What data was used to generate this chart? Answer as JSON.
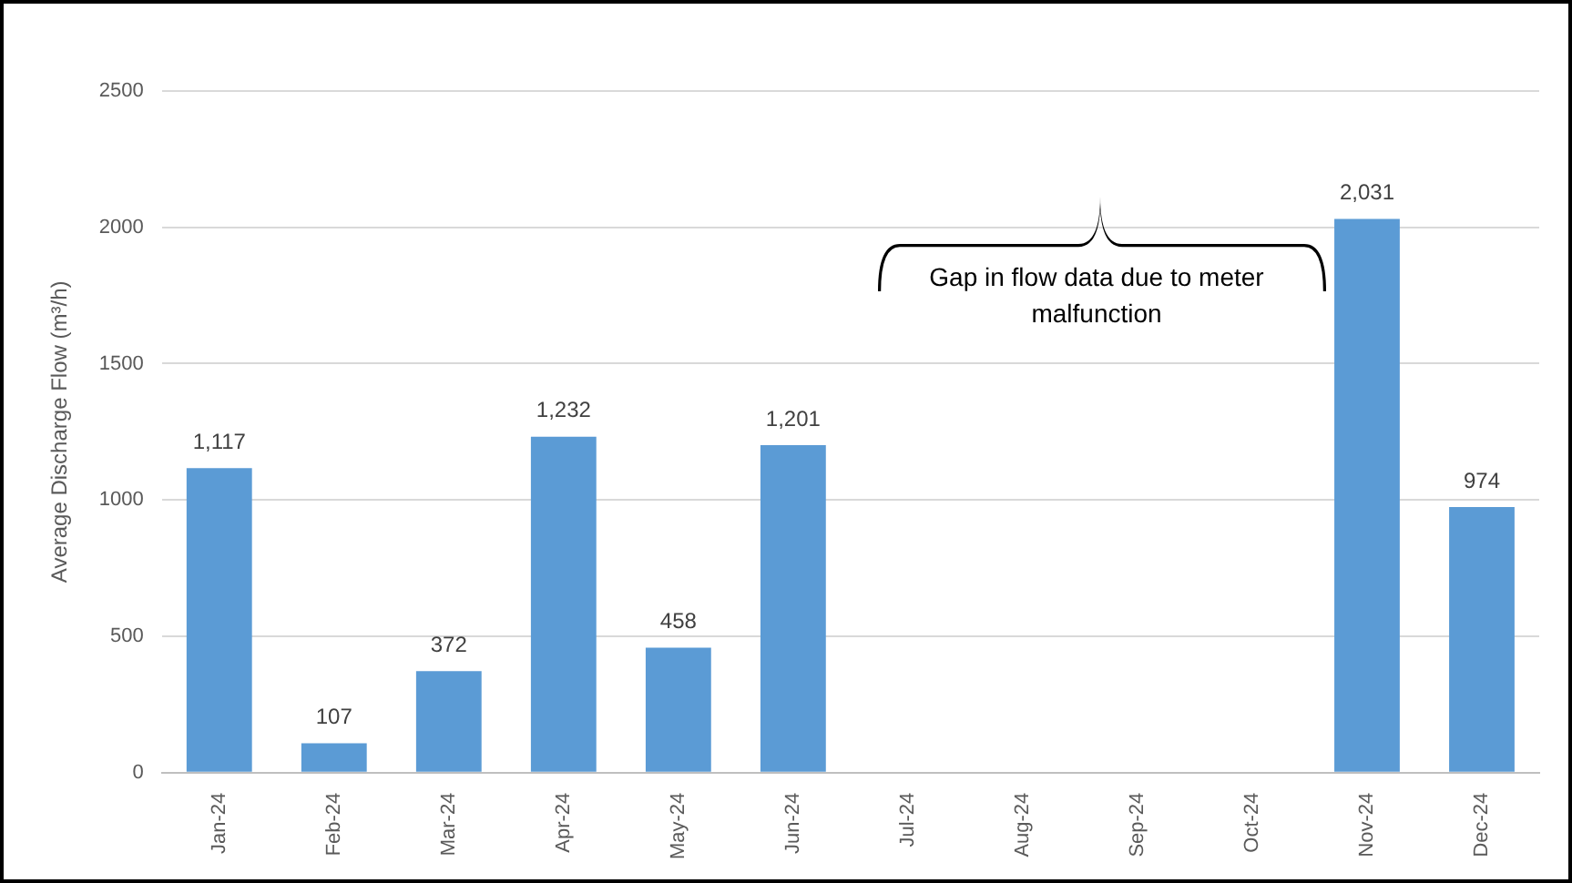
{
  "chart_data": {
    "type": "bar",
    "categories": [
      "Jan-24",
      "Feb-24",
      "Mar-24",
      "Apr-24",
      "May-24",
      "Jun-24",
      "Jul-24",
      "Aug-24",
      "Sep-24",
      "Oct-24",
      "Nov-24",
      "Dec-24"
    ],
    "values": [
      1117,
      107,
      372,
      1232,
      458,
      1201,
      null,
      null,
      null,
      null,
      2031,
      974
    ],
    "value_labels": [
      "1,117",
      "107",
      "372",
      "1,232",
      "458",
      "1,201",
      null,
      null,
      null,
      null,
      "2,031",
      "974"
    ],
    "color": "#5b9bd5",
    "ylabel": "Average Discharge Flow (m³/h)",
    "ylim": [
      0,
      2500
    ],
    "yticks": [
      0,
      500,
      1000,
      1500,
      2000,
      2500
    ],
    "grid": "y",
    "annotations": [
      "Gap in flow data due to meter malfunction"
    ]
  }
}
